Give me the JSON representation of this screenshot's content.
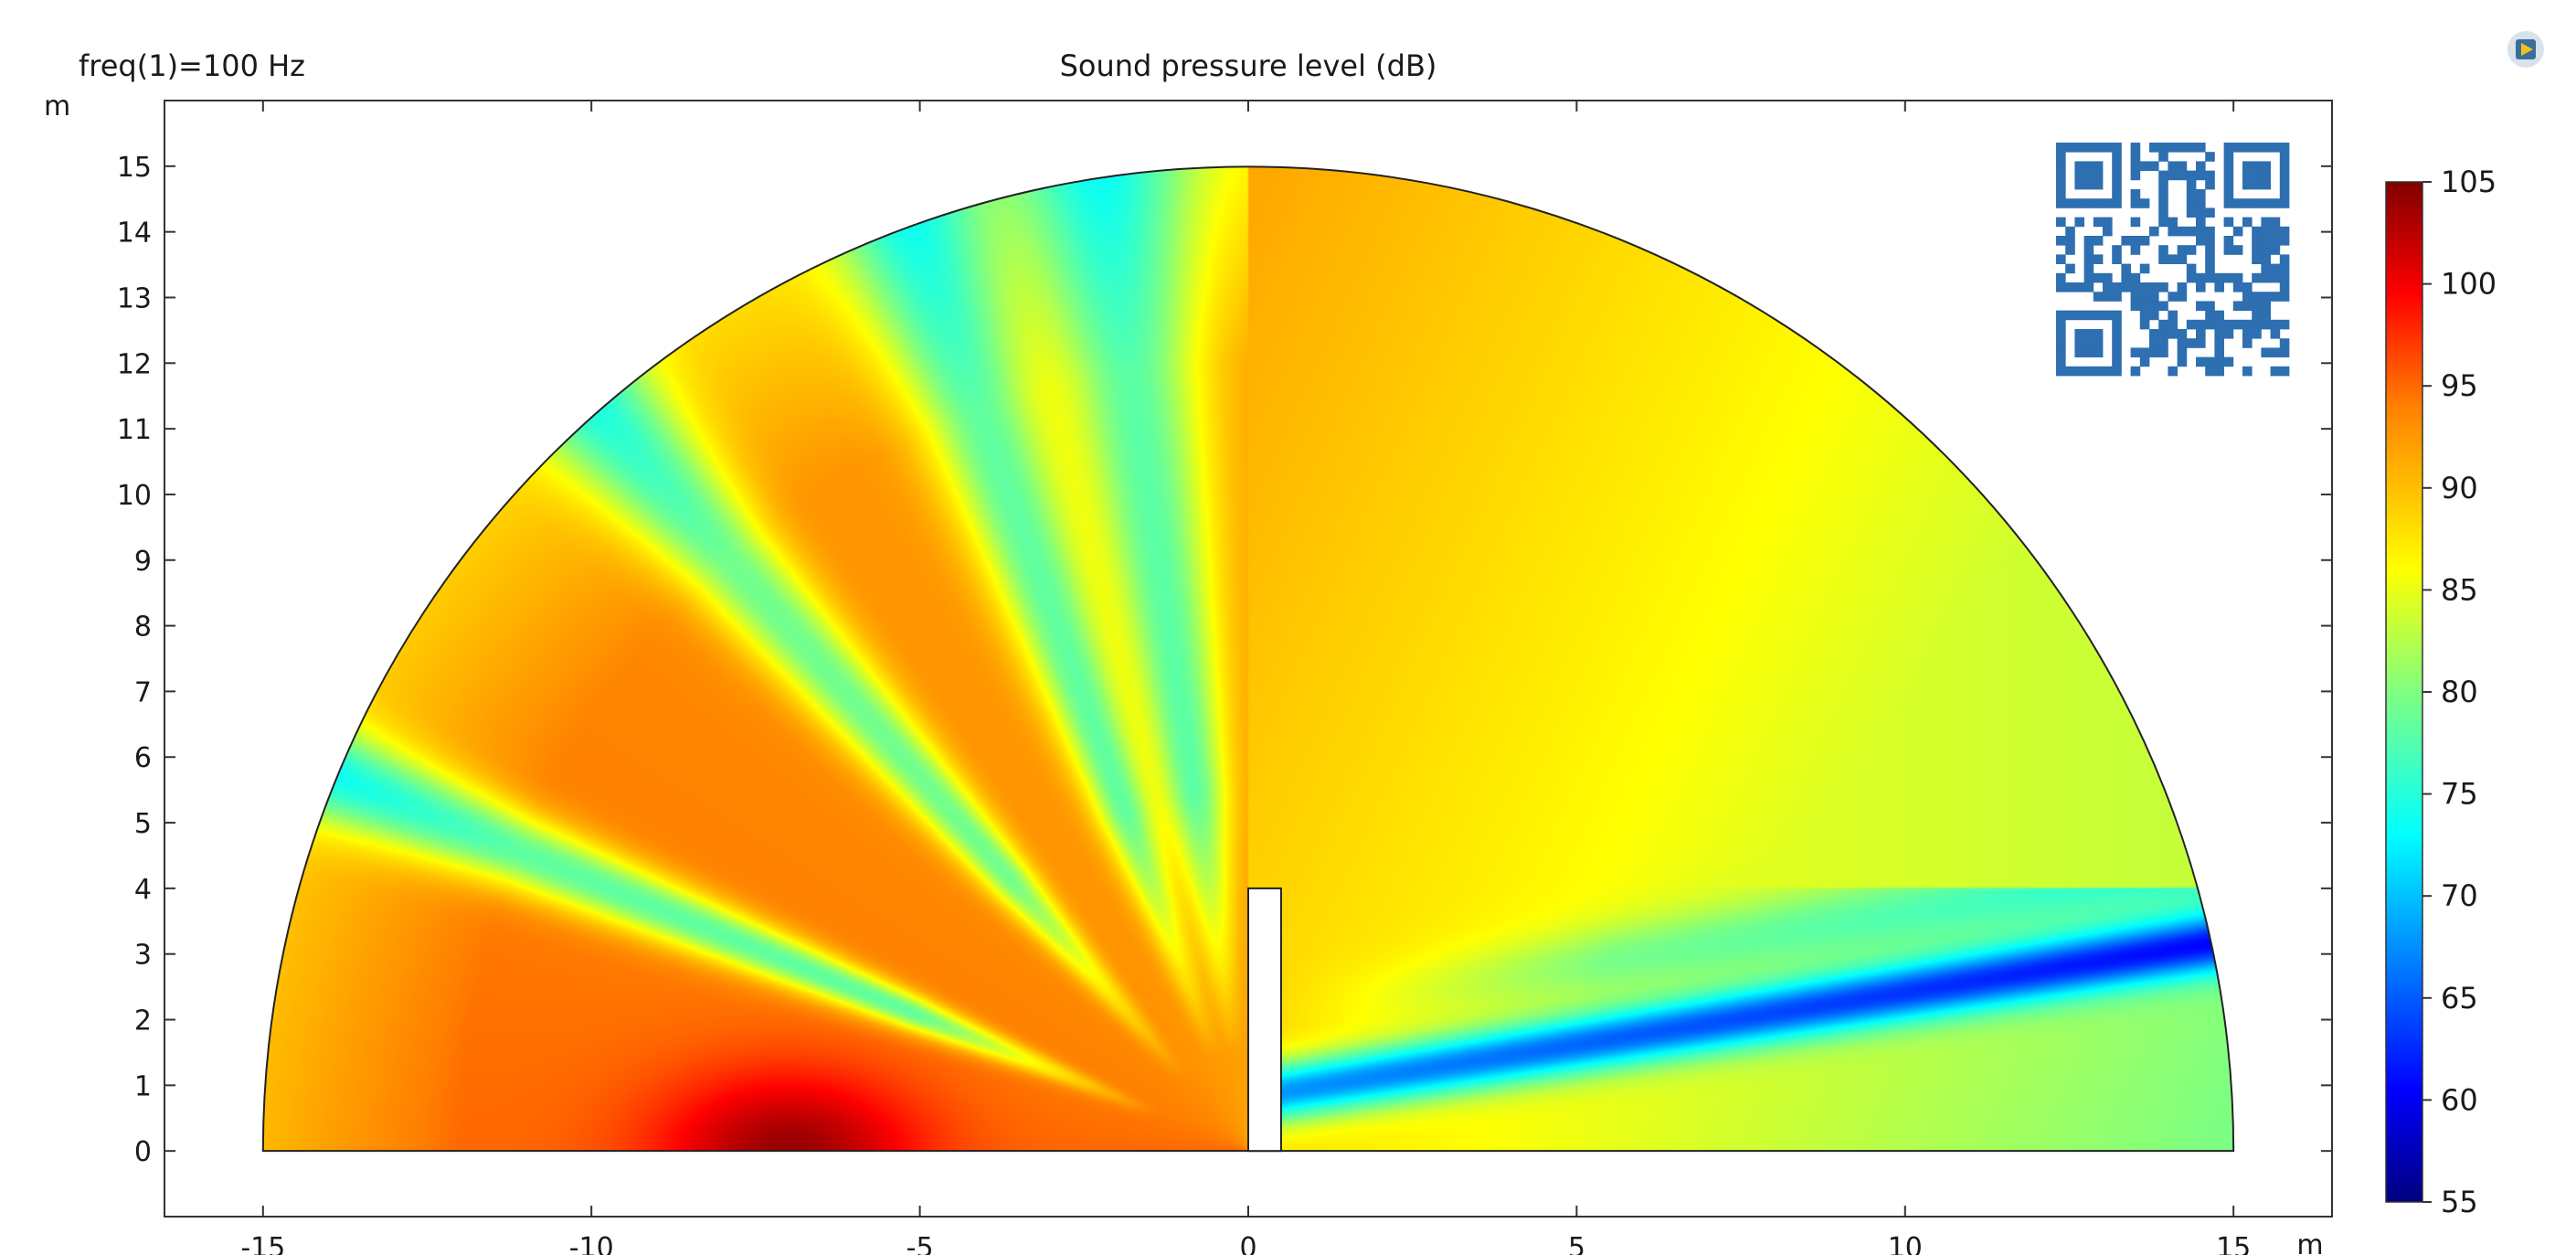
{
  "chart_data": {
    "type": "heatmap",
    "title": "Sound pressure level (dB)",
    "subtitle": "freq(1)=100 Hz",
    "xunit": "m",
    "yunit": "m",
    "xlim": [
      -16.5,
      16.5
    ],
    "ylim": [
      -1,
      16
    ],
    "x_ticks": [
      "-15",
      "-10",
      "-5",
      "0",
      "5",
      "10",
      "15"
    ],
    "x_tick_values": [
      -15,
      -10,
      -5,
      0,
      5,
      10,
      15
    ],
    "y_ticks": [
      "0",
      "1",
      "2",
      "3",
      "4",
      "5",
      "6",
      "7",
      "8",
      "9",
      "10",
      "11",
      "12",
      "13",
      "14",
      "15"
    ],
    "y_tick_values": [
      0,
      1,
      2,
      3,
      4,
      5,
      6,
      7,
      8,
      9,
      10,
      11,
      12,
      13,
      14,
      15
    ],
    "domain": {
      "shape": "half-disk",
      "radius": 15
    },
    "barrier": {
      "x_min": 0,
      "x_max": 0.5,
      "height": 4
    },
    "colorbar": {
      "ticks": [
        "105",
        "100",
        "95",
        "90",
        "85",
        "80",
        "75",
        "70",
        "65",
        "60",
        "55"
      ],
      "tick_values": [
        105,
        100,
        95,
        90,
        85,
        80,
        75,
        70,
        65,
        60,
        55
      ],
      "min": 55,
      "max": 105,
      "colormap": "jet"
    },
    "field_description": {
      "source_side": "left (x<0), levels mostly 90-105 dB with radial interference fringes down to ~75 dB",
      "max_region": "near x=-7, y=0, about 104 dB",
      "shadow_side": "right (x>0.5), levels 75-90 dB, with a low band ~65-70 dB rising from (0.5,0.9) to (15,3)"
    }
  },
  "badges": {
    "qr_code": "qr-code",
    "toolbar_icon": "comsol-logo-icon",
    "qr_color": "#2e6fb1"
  }
}
